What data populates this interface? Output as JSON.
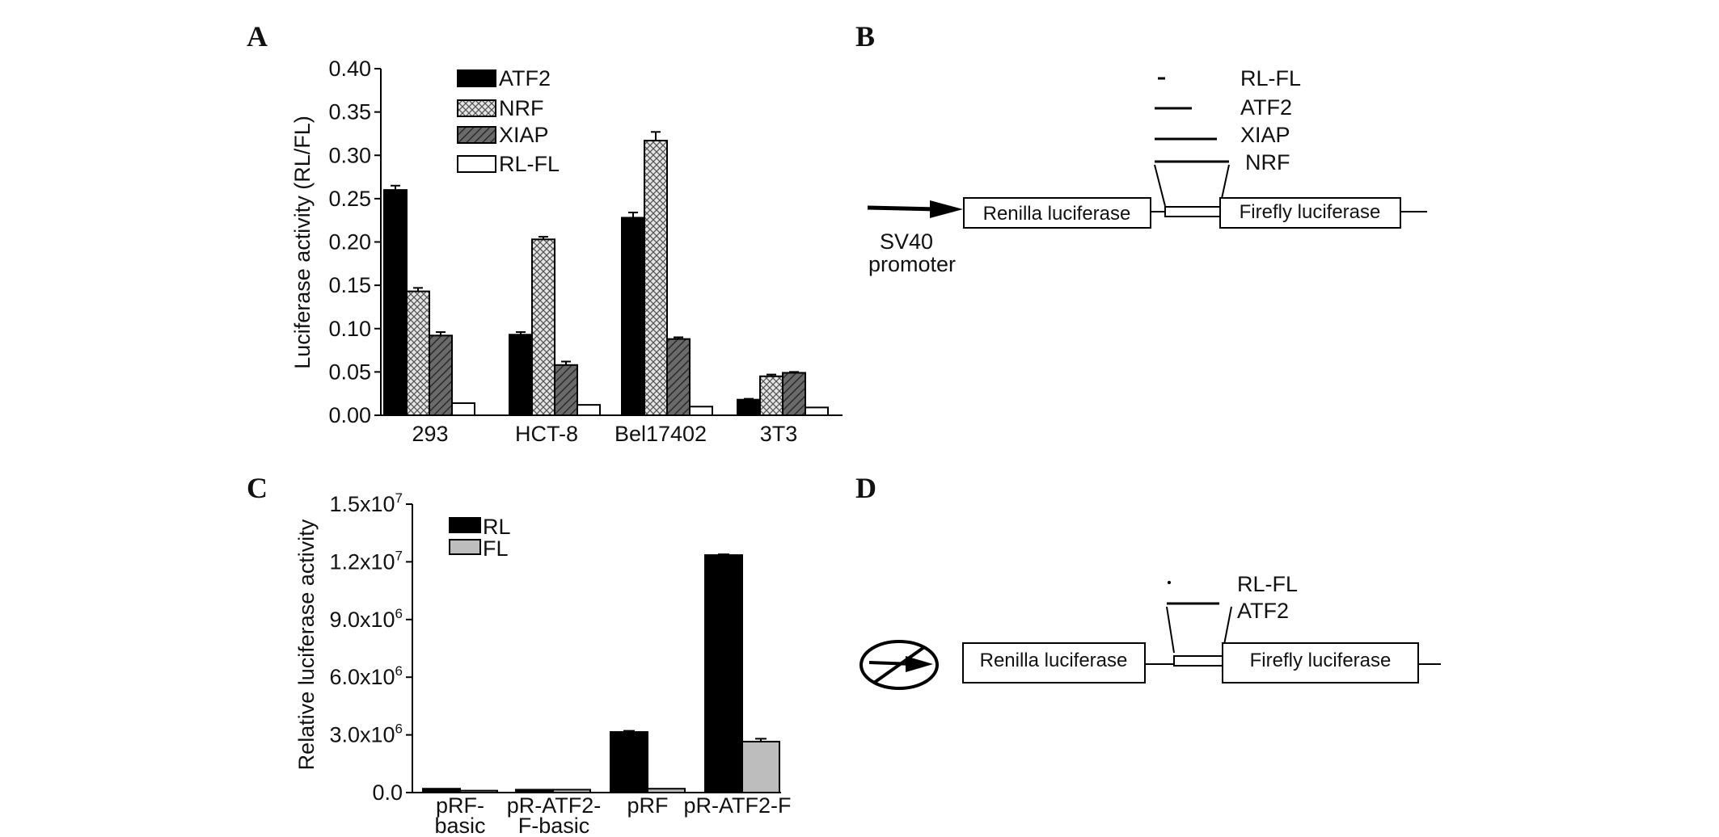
{
  "panels": {
    "a": "A",
    "b": "B",
    "c": "C",
    "d": "D"
  },
  "chart_data": [
    {
      "type": "bar",
      "panel": "A",
      "ylabel": "Luciferase activity (RL/FL)",
      "xlabel": "",
      "ylim": [
        0,
        0.4
      ],
      "yticks": [
        "0.00",
        "0.05",
        "0.10",
        "0.15",
        "0.20",
        "0.25",
        "0.30",
        "0.35",
        "0.40"
      ],
      "categories": [
        "293",
        "HCT-8",
        "Bel17402",
        "3T3"
      ],
      "series": [
        {
          "name": "ATF2",
          "values": [
            0.26,
            0.093,
            0.228,
            0.018
          ],
          "errors": [
            0.005,
            0.003,
            0.006,
            0.001
          ],
          "fill": "solid-black"
        },
        {
          "name": "NRF",
          "values": [
            0.143,
            0.203,
            0.317,
            0.045
          ],
          "errors": [
            0.004,
            0.003,
            0.01,
            0.002
          ],
          "fill": "crosshatch"
        },
        {
          "name": "XIAP",
          "values": [
            0.092,
            0.058,
            0.088,
            0.049
          ],
          "errors": [
            0.004,
            0.004,
            0.002,
            0.001
          ],
          "fill": "diagonal-dark-grey"
        },
        {
          "name": "RL-FL",
          "values": [
            0.014,
            0.012,
            0.01,
            0.009
          ],
          "errors": [
            0,
            0,
            0,
            0
          ],
          "fill": "white"
        }
      ],
      "legend": "top-left inside plot",
      "grid": false
    },
    {
      "type": "bar",
      "panel": "C",
      "ylabel": "Relative luciferase activity",
      "xlabel": "",
      "ylim": [
        0,
        15000000
      ],
      "yticks": [
        {
          "mant": "0.0",
          "exp": ""
        },
        {
          "mant": "3.0x10",
          "exp": "6"
        },
        {
          "mant": "6.0x10",
          "exp": "6"
        },
        {
          "mant": "9.0x10",
          "exp": "6"
        },
        {
          "mant": "1.2x10",
          "exp": "7"
        },
        {
          "mant": "1.5x10",
          "exp": "7"
        }
      ],
      "categories": [
        [
          "pRF-",
          "basic"
        ],
        [
          "pR-ATF2-",
          "F-basic"
        ],
        [
          "pRF"
        ],
        [
          "pR-ATF2-F"
        ]
      ],
      "series": [
        {
          "name": "RL",
          "values": [
            200000,
            150000,
            3150000,
            12350000
          ],
          "errors": [
            0,
            0,
            60000,
            40000
          ],
          "fill": "#000000"
        },
        {
          "name": "FL",
          "values": [
            100000,
            150000,
            200000,
            2650000
          ],
          "errors": [
            0,
            0,
            0,
            150000
          ],
          "fill": "#bdbdbd"
        }
      ],
      "legend": "top-left inside plot",
      "grid": false
    }
  ],
  "diagram_b": {
    "fragments": [
      "RL-FL",
      "ATF2",
      "XIAP",
      "NRF"
    ],
    "promoter_label": [
      "SV40",
      "promoter"
    ],
    "box_left": "Renilla luciferase",
    "box_right": "Firefly luciferase"
  },
  "diagram_d": {
    "fragments": [
      "RL-FL",
      "ATF2"
    ],
    "box_left": "Renilla luciferase",
    "box_right": "Firefly luciferase"
  }
}
